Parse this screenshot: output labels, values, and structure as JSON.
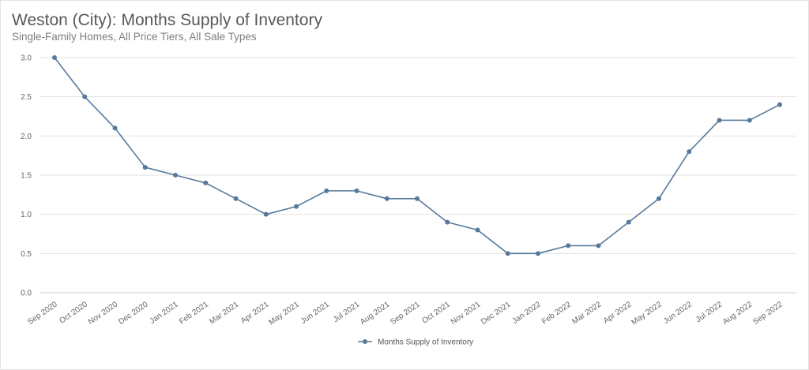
{
  "header": {
    "title": "Weston (City): Months Supply of Inventory",
    "subtitle": "Single-Family Homes, All Price Tiers, All Sale Types"
  },
  "chart_data": {
    "type": "line",
    "title": "Weston (City): Months Supply of Inventory",
    "subtitle": "Single-Family Homes, All Price Tiers, All Sale Types",
    "xlabel": "",
    "ylabel": "",
    "ylim": [
      0,
      3.0
    ],
    "yticks": [
      "0.0",
      "0.5",
      "1.0",
      "1.5",
      "2.0",
      "2.5",
      "3.0"
    ],
    "grid": "horizontal",
    "legend_position": "bottom-center",
    "categories": [
      "Sep 2020",
      "Oct 2020",
      "Nov 2020",
      "Dec 2020",
      "Jan 2021",
      "Feb 2021",
      "Mar 2021",
      "Apr 2021",
      "May 2021",
      "Jun 2021",
      "Jul 2021",
      "Aug 2021",
      "Sep 2021",
      "Oct 2021",
      "Nov 2021",
      "Dec 2021",
      "Jan 2022",
      "Feb 2022",
      "Mar 2022",
      "Apr 2022",
      "May 2022",
      "Jun 2022",
      "Jul 2022",
      "Aug 2022",
      "Sep 2022"
    ],
    "series": [
      {
        "name": "Months Supply of Inventory",
        "color": "#56799b",
        "values": [
          3.0,
          2.5,
          2.1,
          1.6,
          1.5,
          1.4,
          1.2,
          1.0,
          1.1,
          1.3,
          1.3,
          1.2,
          1.2,
          0.9,
          0.8,
          0.5,
          0.5,
          0.6,
          0.6,
          0.9,
          1.2,
          1.8,
          2.2,
          2.2,
          2.4
        ]
      }
    ]
  }
}
